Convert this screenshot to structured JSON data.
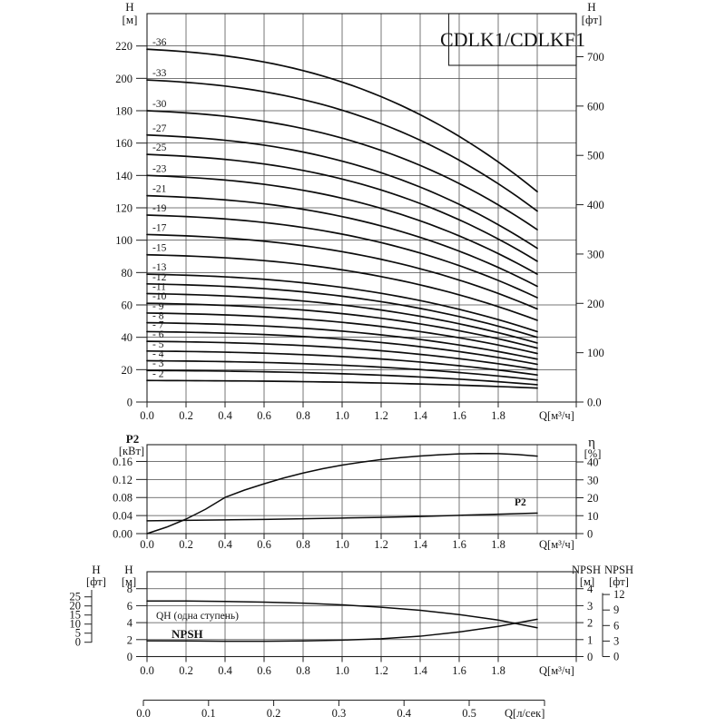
{
  "page": {
    "background": "#ffffff",
    "ink": "#141414",
    "grid_color": "#4a4a4a"
  },
  "title": "CDLK1/CDLKF1",
  "chart_data": [
    {
      "id": "head-chart",
      "type": "line",
      "title": "CDLK1/CDLKF1",
      "xlabel": "Q[м³/ч]",
      "x_tick_labels": [
        "0.0",
        "0.2",
        "0.4",
        "0.6",
        "0.8",
        "1.0",
        "1.2",
        "1.4",
        "1.6",
        "1.8"
      ],
      "x_range": [
        0,
        2.2
      ],
      "grid": true,
      "y_left": {
        "title": "H",
        "unit": "[м]",
        "range": [
          0,
          240
        ],
        "tick_labels": [
          "0",
          "20",
          "40",
          "60",
          "80",
          "100",
          "120",
          "140",
          "160",
          "180",
          "200",
          "220"
        ]
      },
      "y_right": {
        "title": "H",
        "unit": "[фт]",
        "tick_labels": [
          "0.0",
          "100",
          "200",
          "300",
          "400",
          "500",
          "600",
          "700"
        ],
        "metres_per_unit": 0.3048
      },
      "curves_end_q": 2.0,
      "series": [
        {
          "label": "-36",
          "h_start": 218,
          "h_end": 130
        },
        {
          "label": "-33",
          "h_start": 199,
          "h_end": 118
        },
        {
          "label": "-30",
          "h_start": 180,
          "h_end": 106.5
        },
        {
          "label": "-27",
          "h_start": 165,
          "h_end": 95
        },
        {
          "label": "-25",
          "h_start": 153,
          "h_end": 87
        },
        {
          "label": "-23",
          "h_start": 140,
          "h_end": 79
        },
        {
          "label": "-21",
          "h_start": 127.5,
          "h_end": 71.5
        },
        {
          "label": "-19",
          "h_start": 115.5,
          "h_end": 64.5
        },
        {
          "label": "-17",
          "h_start": 103.5,
          "h_end": 57.5
        },
        {
          "label": "-15",
          "h_start": 91,
          "h_end": 50.5
        },
        {
          "label": "-13",
          "h_start": 79,
          "h_end": 43.5
        },
        {
          "label": "-12",
          "h_start": 73,
          "h_end": 40
        },
        {
          "label": "-11",
          "h_start": 67,
          "h_end": 36.5
        },
        {
          "label": "-10",
          "h_start": 61,
          "h_end": 33.3
        },
        {
          "label": "- 9",
          "h_start": 55,
          "h_end": 30
        },
        {
          "label": "- 8",
          "h_start": 49,
          "h_end": 26.5
        },
        {
          "label": "- 7",
          "h_start": 43.5,
          "h_end": 23.3
        },
        {
          "label": "- 6",
          "h_start": 37.5,
          "h_end": 20
        },
        {
          "label": "- 5",
          "h_start": 31.5,
          "h_end": 16.7
        },
        {
          "label": "- 4",
          "h_start": 25.5,
          "h_end": 13.6
        },
        {
          "label": "- 3",
          "h_start": 19.5,
          "h_end": 10.7
        },
        {
          "label": "- 2",
          "h_start": 13.3,
          "h_end": 8.6
        }
      ]
    },
    {
      "id": "power-chart",
      "type": "line",
      "xlabel": "Q[м³/ч]",
      "x_tick_labels": [
        "0.0",
        "0.2",
        "0.4",
        "0.6",
        "0.8",
        "1.0",
        "1.2",
        "1.4",
        "1.6",
        "1.8"
      ],
      "grid": true,
      "y_left": {
        "title": "P2",
        "unit": "[кВт]",
        "range": [
          0,
          0.197
        ],
        "tick_labels": [
          "0.00",
          "0.04",
          "0.08",
          "0.12",
          "0.16"
        ]
      },
      "y_right": {
        "title": "η",
        "unit": "[%]",
        "range": [
          0,
          49.5
        ],
        "tick_labels": [
          "0",
          "10",
          "20",
          "30",
          "40"
        ]
      },
      "series": [
        {
          "name": "P2",
          "axis": "left",
          "label": "P2",
          "points": [
            [
              0,
              0.0285
            ],
            [
              0.2,
              0.0295
            ],
            [
              0.4,
              0.0305
            ],
            [
              0.6,
              0.0315
            ],
            [
              0.8,
              0.033
            ],
            [
              1.0,
              0.0345
            ],
            [
              1.2,
              0.036
            ],
            [
              1.4,
              0.038
            ],
            [
              1.6,
              0.0405
            ],
            [
              1.8,
              0.043
            ],
            [
              2.0,
              0.0455
            ]
          ]
        },
        {
          "name": "eta",
          "axis": "right",
          "points": [
            [
              0,
              0
            ],
            [
              0.1,
              3.6
            ],
            [
              0.2,
              8.1
            ],
            [
              0.3,
              13.6
            ],
            [
              0.4,
              20.2
            ],
            [
              0.5,
              24.3
            ],
            [
              0.6,
              27.8
            ],
            [
              0.7,
              31
            ],
            [
              0.8,
              33.8
            ],
            [
              0.9,
              36.2
            ],
            [
              1.0,
              38.2
            ],
            [
              1.1,
              39.9
            ],
            [
              1.2,
              41.3
            ],
            [
              1.3,
              42.4
            ],
            [
              1.4,
              43.3
            ],
            [
              1.5,
              44
            ],
            [
              1.6,
              44.5
            ],
            [
              1.7,
              44.7
            ],
            [
              1.8,
              44.6
            ],
            [
              1.9,
              44.1
            ],
            [
              2.0,
              43.2
            ]
          ]
        }
      ]
    },
    {
      "id": "npsh-chart",
      "type": "line",
      "xlabel": "Q[м³/ч]",
      "x_tick_labels": [
        "0.0",
        "0.2",
        "0.4",
        "0.6",
        "0.8",
        "1.0",
        "1.2",
        "1.4",
        "1.6",
        "1.8"
      ],
      "grid": true,
      "y_left_m": {
        "title": "H",
        "unit": "[м]",
        "range": [
          0,
          10
        ],
        "tick_labels": [
          "0",
          "2",
          "4",
          "6",
          "8"
        ]
      },
      "y_left_ft": {
        "title": "H",
        "unit": "[фт]",
        "tick_labels": [
          "0",
          "5",
          "10",
          "15",
          "20",
          "25"
        ]
      },
      "y_right_m": {
        "title": "NPSH",
        "unit": "[м]",
        "tick_labels": [
          "0",
          "1",
          "2",
          "3",
          "4"
        ]
      },
      "y_right_ft": {
        "title": "NPSH",
        "unit": "[фт]",
        "tick_labels": [
          "0",
          "3",
          "6",
          "9",
          "12"
        ]
      },
      "series": [
        {
          "name": "QH",
          "label": "QH (одна ступень)",
          "axis": "left_m",
          "points": [
            [
              0,
              6.55
            ],
            [
              0.2,
              6.55
            ],
            [
              0.4,
              6.5
            ],
            [
              0.6,
              6.42
            ],
            [
              0.8,
              6.3
            ],
            [
              1.0,
              6.1
            ],
            [
              1.2,
              5.82
            ],
            [
              1.4,
              5.45
            ],
            [
              1.6,
              4.95
            ],
            [
              1.8,
              4.3
            ],
            [
              2.0,
              3.4
            ]
          ]
        },
        {
          "name": "NPSH",
          "label": "NPSH",
          "axis": "right_m",
          "points": [
            [
              0,
              0.93
            ],
            [
              0.2,
              0.92
            ],
            [
              0.4,
              0.9
            ],
            [
              0.6,
              0.9
            ],
            [
              0.8,
              0.92
            ],
            [
              1.0,
              0.97
            ],
            [
              1.2,
              1.05
            ],
            [
              1.4,
              1.2
            ],
            [
              1.6,
              1.45
            ],
            [
              1.8,
              1.78
            ],
            [
              2.0,
              2.2
            ]
          ]
        }
      ]
    }
  ],
  "flow_axis": {
    "label": "Q[л/сек]",
    "tick_labels": [
      "0.0",
      "0.1",
      "0.2",
      "0.3",
      "0.4",
      "0.5"
    ]
  }
}
